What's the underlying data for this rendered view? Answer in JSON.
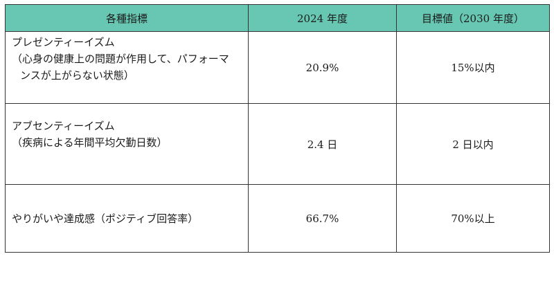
{
  "table": {
    "headers": [
      "各種指標",
      "2024 年度",
      "目標値（2030 年度）"
    ],
    "rows": [
      {
        "indicator_lines": [
          "プレゼンティーイズム",
          "（心身の健康上の問題が作用して、パフォーマ",
          "ンスが上がらない状態）"
        ],
        "value_2024": "20.9%",
        "target_2030": "15%以内"
      },
      {
        "indicator_lines": [
          "アブセンティーイズム",
          "（疾病による年間平均欠勤日数）"
        ],
        "value_2024": "2.4 日",
        "target_2030": "2 日以内"
      },
      {
        "indicator_lines": [
          "やりがいや達成感（ポジティブ回答率）"
        ],
        "value_2024": "66.7%",
        "target_2030": "70%以上"
      }
    ]
  },
  "colors": {
    "header_background": "#67c7b2",
    "border": "#333333"
  }
}
